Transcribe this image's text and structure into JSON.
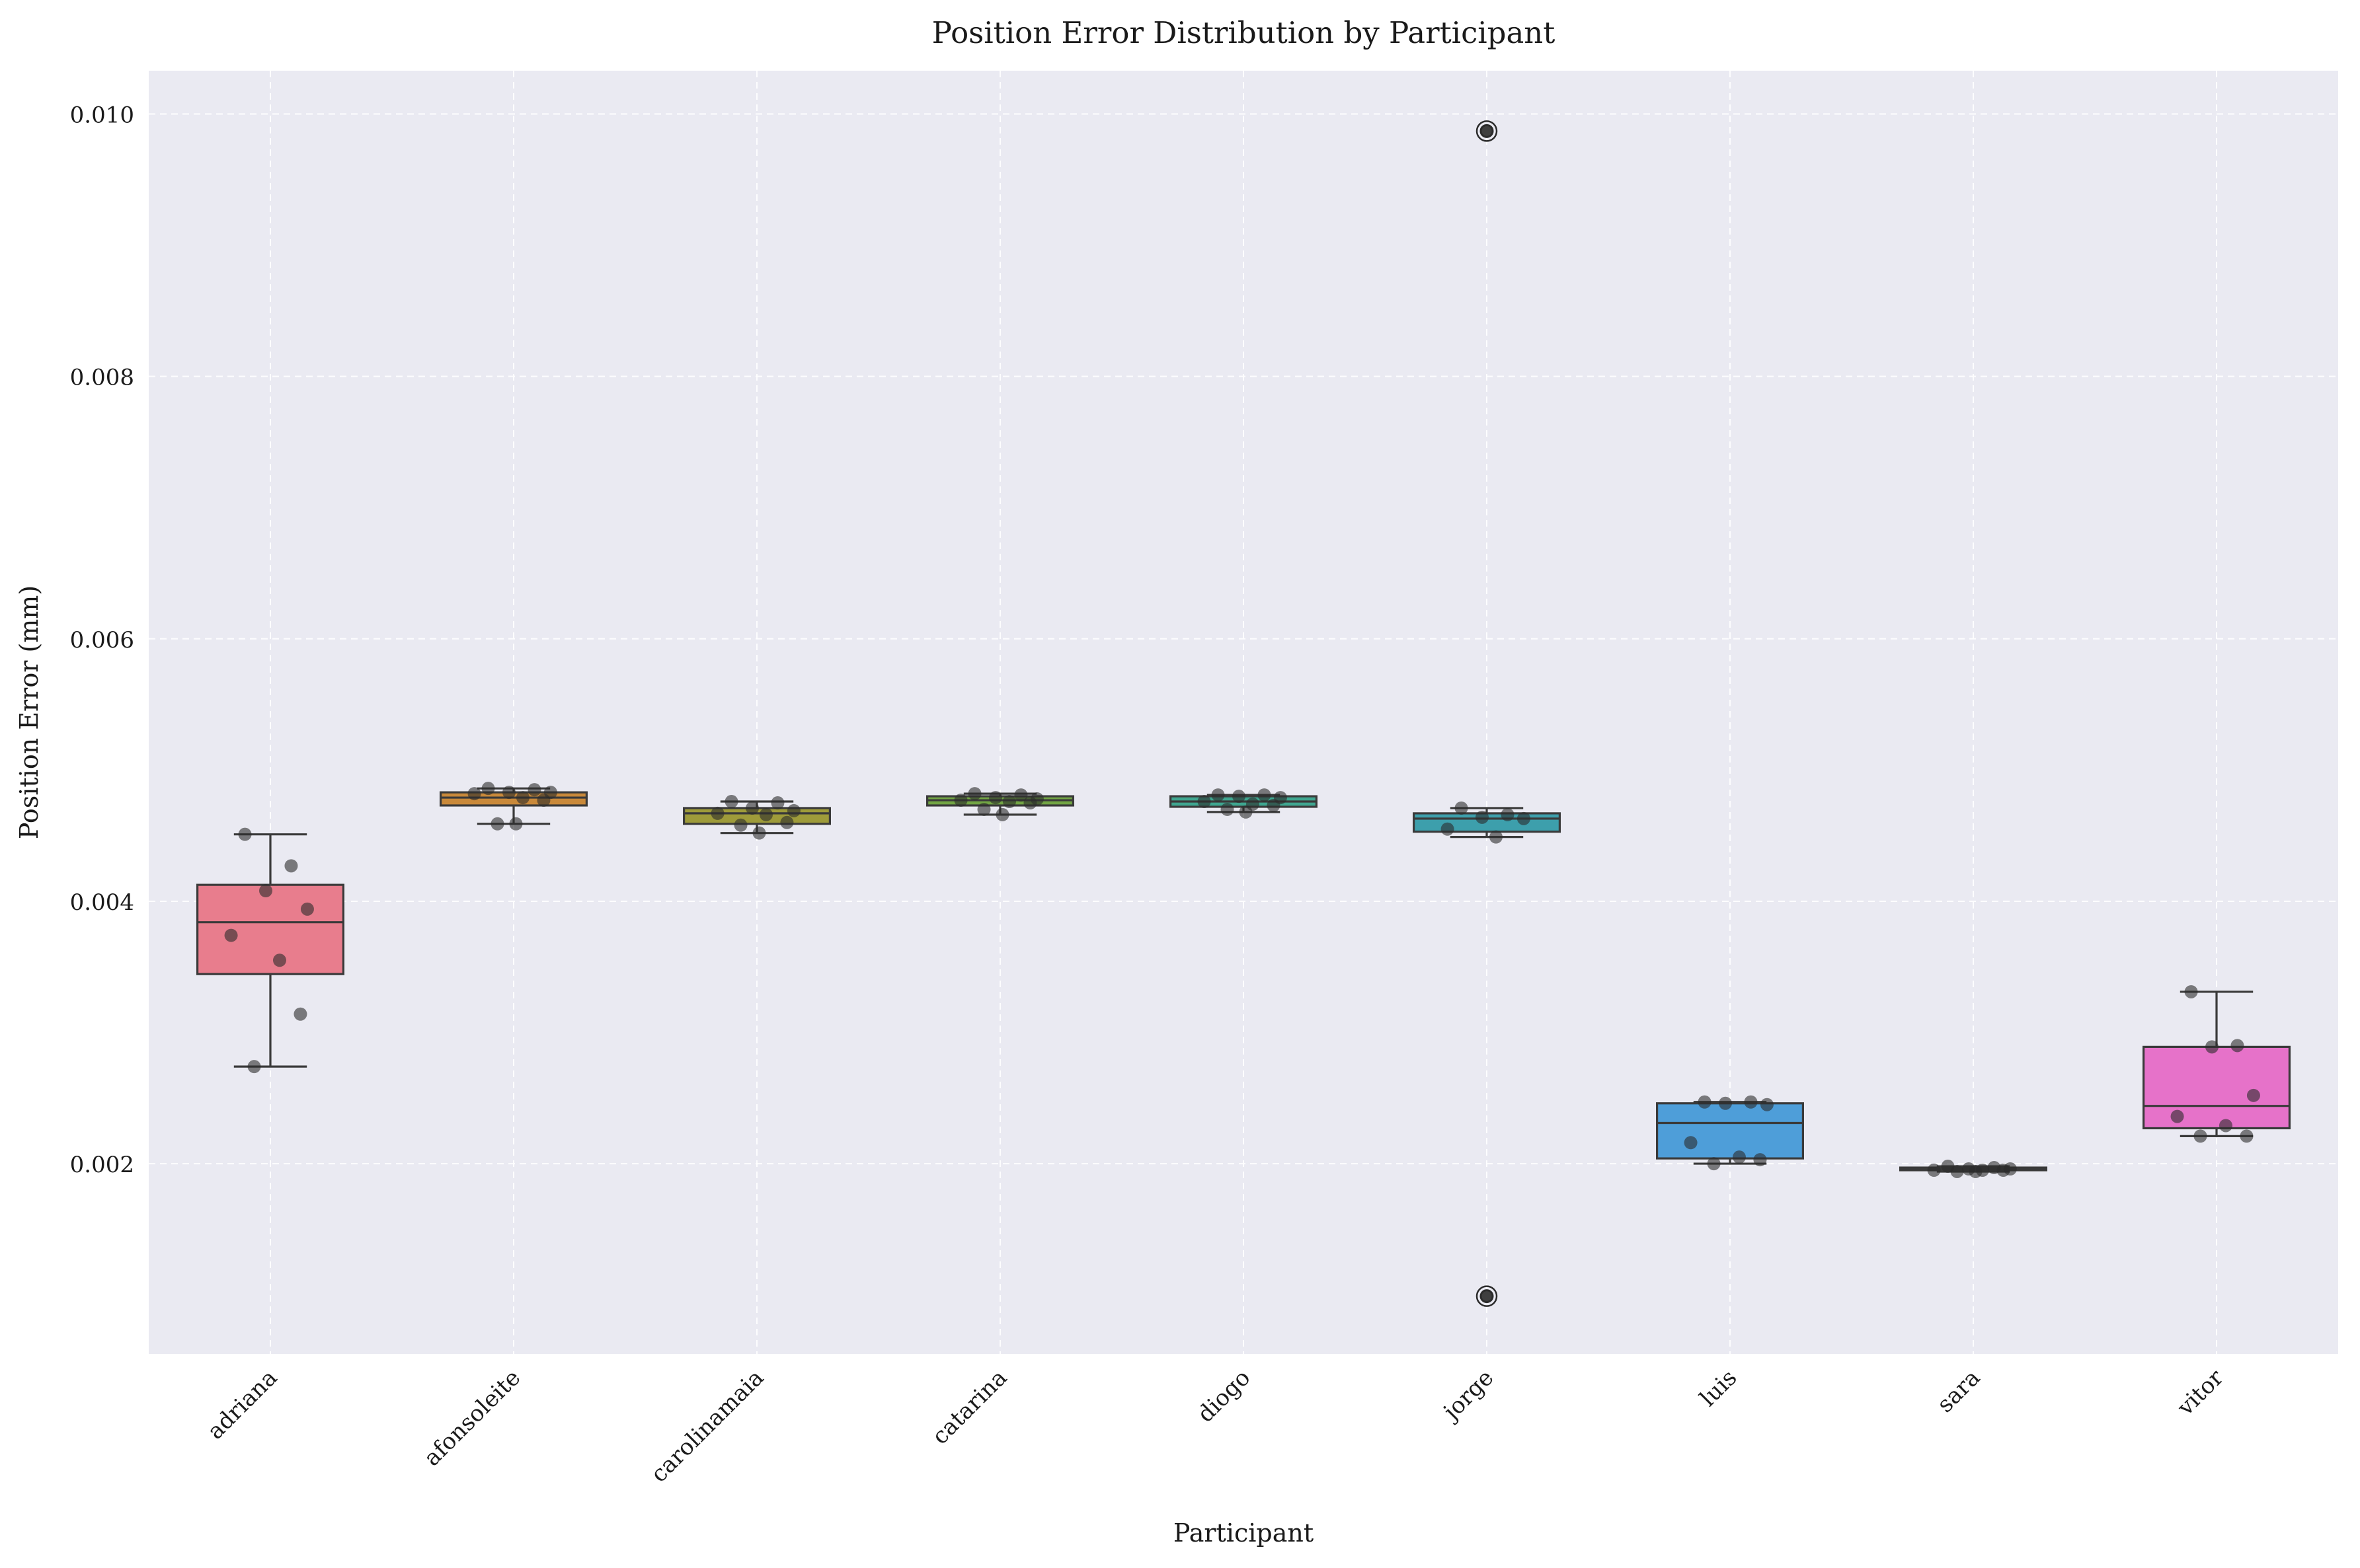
{
  "chart_data": {
    "type": "box",
    "title": "Position Error Distribution by Participant",
    "xlabel": "Participant",
    "ylabel": "Position Error (mm)",
    "ylim": [
      0.00055,
      0.01033
    ],
    "yticks": [
      0.002,
      0.004,
      0.006,
      0.008,
      0.01
    ],
    "ytick_labels": [
      "0.002",
      "0.004",
      "0.006",
      "0.008",
      "0.010"
    ],
    "grid": true,
    "categories": [
      "adriana",
      "afonsoleite",
      "carolinamaia",
      "catarina",
      "diogo",
      "jorge",
      "luis",
      "sara",
      "vitor"
    ],
    "colors": [
      "#e87d8d",
      "#c9893a",
      "#9e9b3a",
      "#72a544",
      "#3fa690",
      "#3d9fac",
      "#4e9ed9",
      "#9a8ee0",
      "#e672c9"
    ],
    "boxes": [
      {
        "name": "adriana",
        "whislo": 0.00274,
        "q1": 0.003445,
        "med": 0.00384,
        "q3": 0.004125,
        "whishi": 0.00451,
        "points": [
          0.00451,
          0.00427,
          0.00408,
          0.00394,
          0.00374,
          0.00355,
          0.00314,
          0.00274
        ],
        "fliers": []
      },
      {
        "name": "afonsoleite",
        "whislo": 0.00459,
        "q1": 0.00473,
        "med": 0.00479,
        "q3": 0.00483,
        "whishi": 0.00486,
        "points": [
          0.00486,
          0.00485,
          0.00483,
          0.00483,
          0.00482,
          0.00479,
          0.00477,
          0.00459,
          0.00459
        ],
        "fliers": []
      },
      {
        "name": "carolinamaia",
        "whislo": 0.00452,
        "q1": 0.00459,
        "med": 0.00467,
        "q3": 0.00471,
        "whishi": 0.00476,
        "points": [
          0.00476,
          0.00475,
          0.00471,
          0.00469,
          0.00467,
          0.00466,
          0.0046,
          0.00458,
          0.00452
        ],
        "fliers": []
      },
      {
        "name": "catarina",
        "whislo": 0.00466,
        "q1": 0.00473,
        "med": 0.00477,
        "q3": 0.0048,
        "whishi": 0.00482,
        "points": [
          0.00482,
          0.00481,
          0.00479,
          0.00478,
          0.00477,
          0.00476,
          0.00475,
          0.0047,
          0.00466
        ],
        "fliers": []
      },
      {
        "name": "diogo",
        "whislo": 0.00468,
        "q1": 0.00472,
        "med": 0.00476,
        "q3": 0.0048,
        "whishi": 0.00481,
        "points": [
          0.00481,
          0.00481,
          0.0048,
          0.00479,
          0.00476,
          0.00474,
          0.00473,
          0.0047,
          0.00468
        ],
        "fliers": []
      },
      {
        "name": "jorge",
        "whislo": 0.00449,
        "q1": 0.00453,
        "med": 0.00463,
        "q3": 0.00467,
        "whishi": 0.00471,
        "points": [
          0.00471,
          0.00466,
          0.00464,
          0.00463,
          0.00455,
          0.00449
        ],
        "fliers": [
          0.00987,
          0.00099
        ]
      },
      {
        "name": "luis",
        "whislo": 0.002,
        "q1": 0.00204,
        "med": 0.00231,
        "q3": 0.00246,
        "whishi": 0.00247,
        "points": [
          0.00247,
          0.00247,
          0.00246,
          0.00245,
          0.00216,
          0.00205,
          0.00203,
          0.002
        ],
        "fliers": []
      },
      {
        "name": "sara",
        "whislo": 0.00194,
        "q1": 0.00195,
        "med": 0.00196,
        "q3": 0.00197,
        "whishi": 0.00198,
        "points": [
          0.00198,
          0.00197,
          0.00196,
          0.00196,
          0.00195,
          0.00195,
          0.00195,
          0.00194,
          0.00194
        ],
        "fliers": []
      },
      {
        "name": "vitor",
        "whislo": 0.00221,
        "q1": 0.00227,
        "med": 0.00244,
        "q3": 0.00289,
        "whishi": 0.00331,
        "points": [
          0.00331,
          0.0029,
          0.00289,
          0.00252,
          0.00236,
          0.00229,
          0.00221,
          0.00221
        ],
        "fliers": []
      }
    ]
  }
}
